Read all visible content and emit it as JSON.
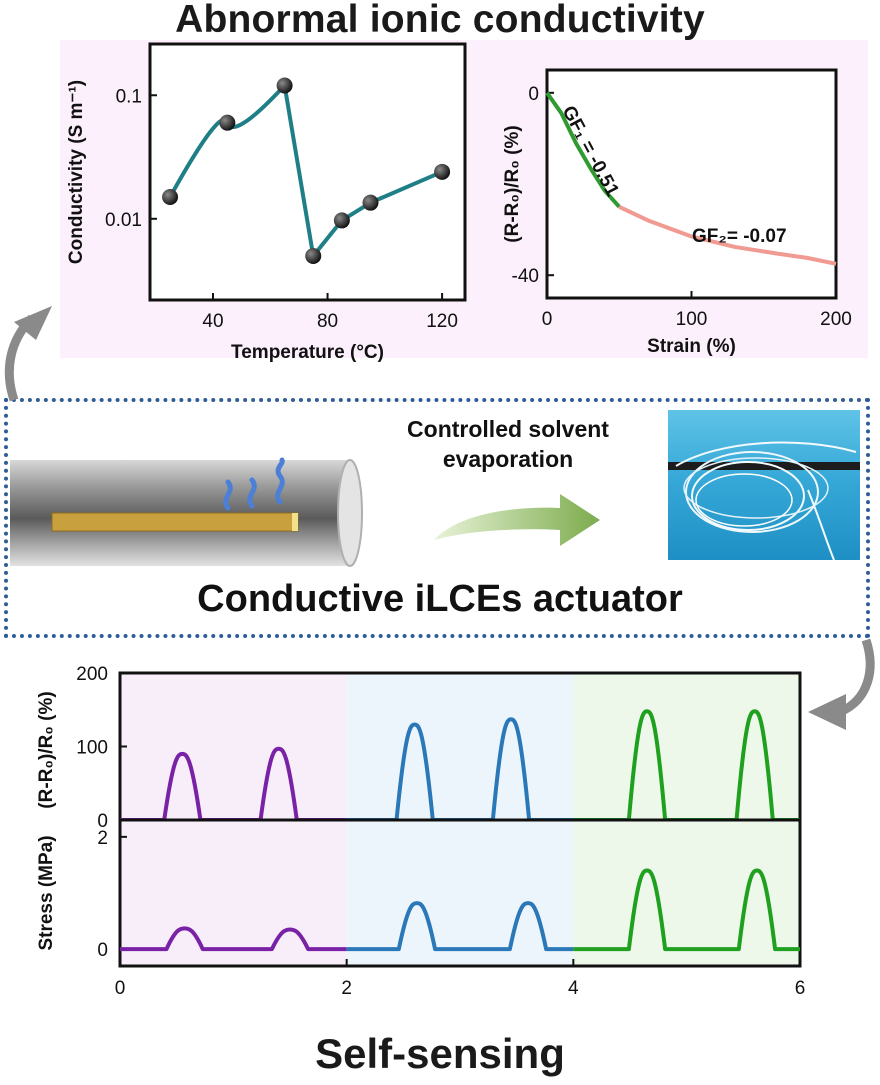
{
  "figure": {
    "top_title": "Abnormal ionic conductivity",
    "middle_caption": "Conductive iLCEs actuator",
    "evaporation_label_line1": "Controlled solvent",
    "evaporation_label_line2": "evaporation",
    "bottom_title": "Self-sensing"
  },
  "colors": {
    "teal": "#1f7f86",
    "green": "#2f9a2f",
    "pink": "#f09a92",
    "purple": "#7a22a6",
    "blue": "#2b78b8",
    "bright_green": "#1fa01f"
  },
  "chart_data": [
    {
      "type": "scatter",
      "xlabel": "Temperature (°C)",
      "ylabel": "Conductivity (S m⁻¹)",
      "xlim": [
        18,
        128
      ],
      "ylim": [
        0.0022,
        0.26
      ],
      "yscale": "log",
      "x_ticks": [
        40,
        80,
        120
      ],
      "y_ticks": [
        {
          "value": 0.01,
          "label": "0.01"
        },
        {
          "value": 0.1,
          "label": "0.1"
        }
      ],
      "points": [
        {
          "x": 25,
          "y": 0.015
        },
        {
          "x": 45,
          "y": 0.06
        },
        {
          "x": 65,
          "y": 0.12
        },
        {
          "x": 75,
          "y": 0.005
        },
        {
          "x": 85,
          "y": 0.0097
        },
        {
          "x": 95,
          "y": 0.0135
        },
        {
          "x": 120,
          "y": 0.024
        }
      ]
    },
    {
      "type": "line",
      "xlabel": "Strain (%)",
      "ylabel": "(R-R₀)/R₀ (%)",
      "xlim": [
        0,
        200
      ],
      "ylim": [
        -45,
        5
      ],
      "x_ticks": [
        0,
        100,
        200
      ],
      "y_ticks": [
        0,
        -40
      ],
      "series": [
        {
          "values": [
            [
              0,
              0
            ],
            [
              10,
              -4.5
            ],
            [
              20,
              -11
            ],
            [
              30,
              -16.5
            ],
            [
              40,
              -21.5
            ],
            [
              50,
              -25
            ]
          ]
        },
        {
          "values": [
            [
              50,
              -25
            ],
            [
              70,
              -28
            ],
            [
              100,
              -31.5
            ],
            [
              130,
              -33.8
            ],
            [
              160,
              -35.3
            ],
            [
              180,
              -36.2
            ],
            [
              200,
              -37.5
            ]
          ]
        }
      ],
      "annotations": [
        {
          "text": "GF₁ = -0.51"
        },
        {
          "text": "GF₂= -0.07"
        }
      ]
    },
    {
      "type": "line",
      "ylabel": "(R-R₀)/R₀ (%)",
      "xlim": [
        0,
        6
      ],
      "ylim": [
        0,
        200
      ],
      "y_ticks": [
        0,
        100,
        200
      ],
      "peaks": [
        {
          "center": 0.55,
          "height": 90
        },
        {
          "center": 1.4,
          "height": 97
        },
        {
          "center": 2.6,
          "height": 130
        },
        {
          "center": 3.45,
          "height": 137
        },
        {
          "center": 4.65,
          "height": 148
        },
        {
          "center": 5.6,
          "height": 148
        }
      ]
    },
    {
      "type": "line",
      "xlabel": "",
      "ylabel": "Stress (MPa)",
      "xlim": [
        0,
        6
      ],
      "ylim": [
        -0.3,
        2.3
      ],
      "x_ticks": [
        0,
        2,
        4,
        6
      ],
      "y_ticks": [
        0,
        2
      ],
      "peaks": [
        {
          "center": 0.57,
          "height": 0.37
        },
        {
          "center": 1.5,
          "height": 0.35
        },
        {
          "center": 2.62,
          "height": 0.82
        },
        {
          "center": 3.6,
          "height": 0.82
        },
        {
          "center": 4.65,
          "height": 1.4
        },
        {
          "center": 5.62,
          "height": 1.4
        }
      ]
    }
  ]
}
